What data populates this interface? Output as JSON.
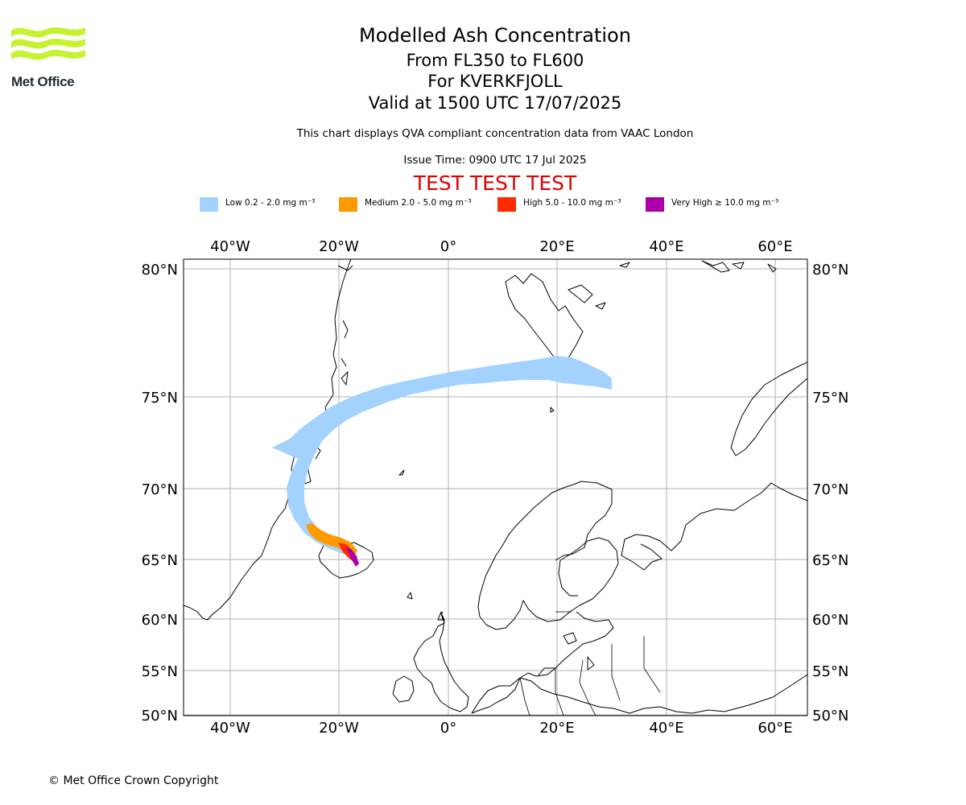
{
  "logo": {
    "text": "Met Office",
    "color": "#c6f230"
  },
  "header": {
    "title": "Modelled Ash Concentration",
    "levels": "From FL350 to FL600",
    "volcano": "For KVERKFJOLL",
    "valid": "Valid at 1500 UTC 17/07/2025",
    "note": "This chart displays QVA compliant concentration data from VAAC London",
    "issue": "Issue Time: 0900 UTC 17 Jul 2025",
    "test_banner": "TEST TEST TEST"
  },
  "legend": [
    {
      "label": "Low 0.2 - 2.0 mg m⁻³",
      "color": "#a3d2fe"
    },
    {
      "label": "Medium 2.0 - 5.0 mg m⁻³",
      "color": "#ff9900"
    },
    {
      "label": "High 5.0 - 10.0 mg m⁻³",
      "color": "#ff2a00"
    },
    {
      "label": "Very High  ≥  10.0 mg m⁻³",
      "color": "#aa00aa"
    }
  ],
  "map": {
    "lon_ticks_top": [
      "40°W",
      "20°W",
      "0°",
      "20°E",
      "40°E",
      "60°E"
    ],
    "lon_ticks_bottom": [
      "40°W",
      "20°W",
      "0°",
      "20°E",
      "40°E",
      "60°E"
    ],
    "lat_ticks_left": [
      "80°N",
      "75°N",
      "70°N",
      "65°N",
      "60°N",
      "55°N",
      "50°N"
    ],
    "lat_ticks_right": [
      "80°N",
      "75°N",
      "70°N",
      "65°N",
      "60°N",
      "55°N",
      "50°N"
    ],
    "gridline_color": "#b0b0b0"
  },
  "footer": {
    "copyright": "© Met Office Crown Copyright"
  }
}
